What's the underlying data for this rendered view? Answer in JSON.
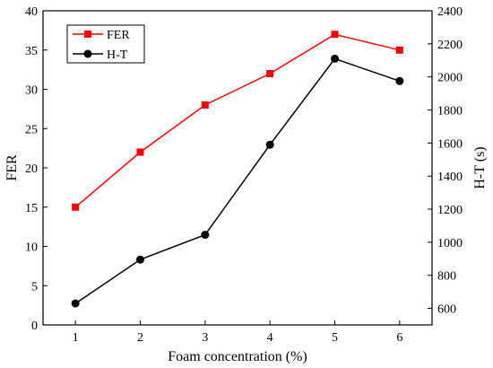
{
  "chart_data": {
    "type": "line",
    "x": [
      1,
      2,
      3,
      4,
      5,
      6
    ],
    "xlabel": "Foam concentration (%)",
    "xlim": [
      0.5,
      6.5
    ],
    "xticks": [
      1,
      2,
      3,
      4,
      5,
      6
    ],
    "y_left": {
      "label": "FER",
      "lim": [
        0,
        40
      ],
      "ticks": [
        0,
        5,
        10,
        15,
        20,
        25,
        30,
        35,
        40
      ]
    },
    "y_right": {
      "label": "H-T (s)",
      "lim": [
        500,
        2400
      ],
      "ticks": [
        600,
        800,
        1000,
        1200,
        1400,
        1600,
        1800,
        2000,
        2200,
        2400
      ]
    },
    "series": [
      {
        "name": "FER",
        "axis": "left",
        "color": "#ff0000",
        "marker": "square",
        "values": [
          15,
          22,
          28,
          32,
          37,
          35
        ]
      },
      {
        "name": "H-T",
        "axis": "right",
        "color": "#000000",
        "marker": "circle",
        "values": [
          630,
          895,
          1045,
          1590,
          2110,
          1975
        ]
      }
    ],
    "legend": "top-left",
    "grid": false
  }
}
